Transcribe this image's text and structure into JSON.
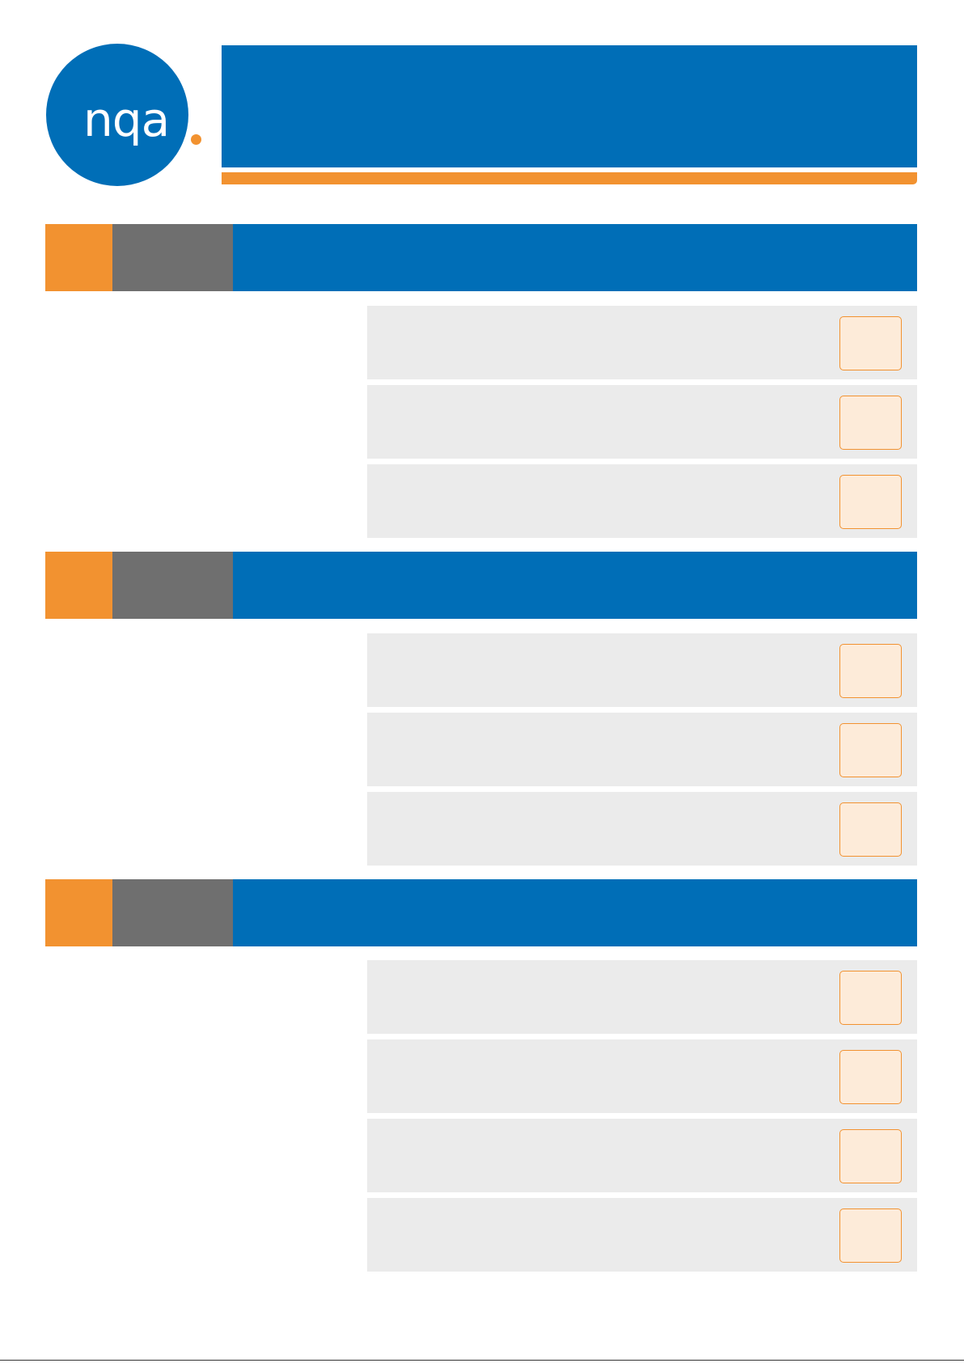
{
  "logo": {
    "text": "nqa"
  }
}
